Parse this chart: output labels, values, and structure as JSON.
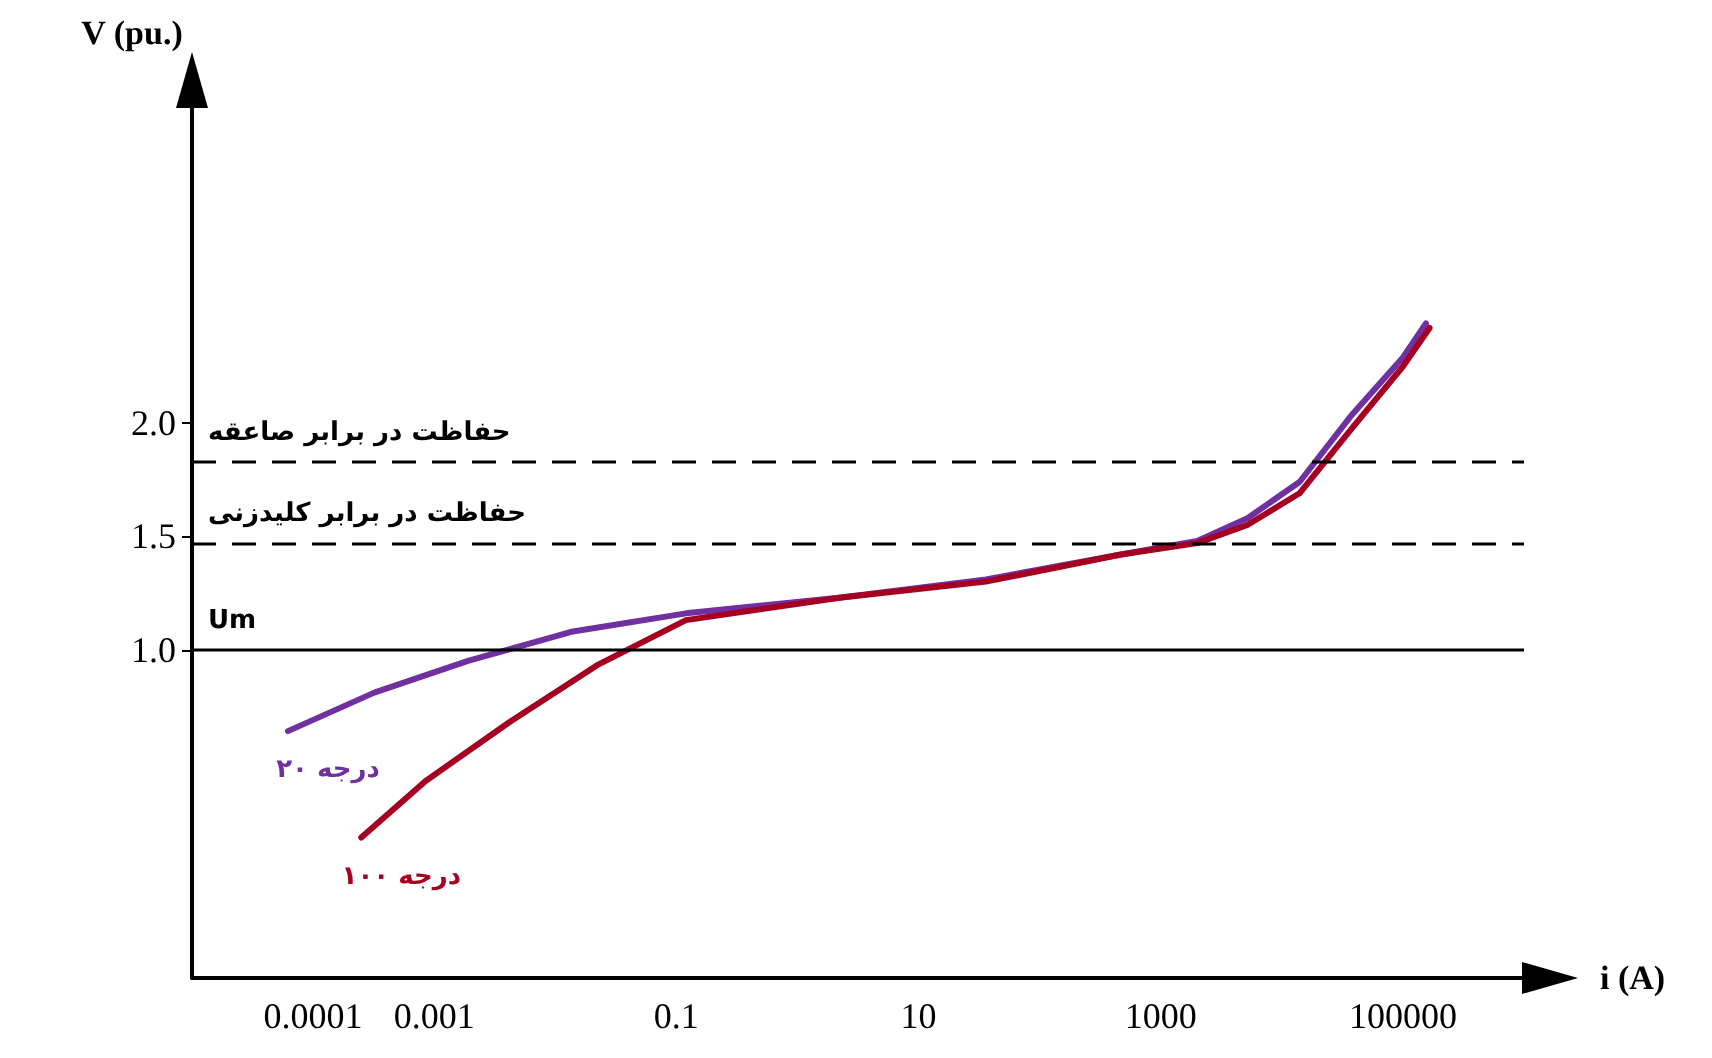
{
  "chart_data": {
    "type": "line",
    "xlabel": "i (A)",
    "ylabel": "V (pu.)",
    "log": "x",
    "xlim": [
      1e-05,
      1000000
    ],
    "xticks": [
      0.0001,
      0.001,
      0.1,
      10,
      1000,
      100000
    ],
    "ylim": [
      -0.45,
      3.4
    ],
    "yticks": [
      {
        "value": 1.0,
        "label": "1.0"
      },
      1.5,
      {
        "value": 2.0,
        "label": "2.0"
      }
    ],
    "series": [
      {
        "name": "۲۰ درجه",
        "color": "#7030a0",
        "x": [
          6.2e-05,
          0.00032,
          0.0019,
          0.014,
          0.12,
          2.3,
          36,
          470,
          2000,
          5200,
          14000,
          37000,
          100000,
          155000
        ],
        "values": [
          0.64,
          0.81,
          0.95,
          1.08,
          1.16,
          1.23,
          1.31,
          1.42,
          1.48,
          1.58,
          1.74,
          2.03,
          2.29,
          2.44
        ]
      },
      {
        "name": "۱۰۰ درجه",
        "color": "#a50021",
        "x": [
          0.00025,
          0.00085,
          0.0042,
          0.022,
          0.12,
          2.3,
          36,
          470,
          2000,
          5200,
          14000,
          37000,
          100000,
          166000
        ],
        "values": [
          0.17,
          0.42,
          0.68,
          0.93,
          1.13,
          1.23,
          1.3,
          1.42,
          1.47,
          1.55,
          1.69,
          1.97,
          2.25,
          2.42
        ]
      }
    ],
    "ref_lines": [
      {
        "axis": "y",
        "value": 1.83,
        "label": "حفاظت در برابر صاعقه",
        "line_style": "dashed",
        "color": "#000000"
      },
      {
        "axis": "y",
        "value": 1.47,
        "label": "حفاظت در برابر کلیدزنی",
        "line_style": "dashed",
        "color": "#000000"
      },
      {
        "axis": "y",
        "value": 1.0,
        "label": "Um",
        "line_style": "solid",
        "color": "#000000"
      }
    ],
    "grid": false,
    "legend": false,
    "marker": "none",
    "line_style": "solid"
  }
}
